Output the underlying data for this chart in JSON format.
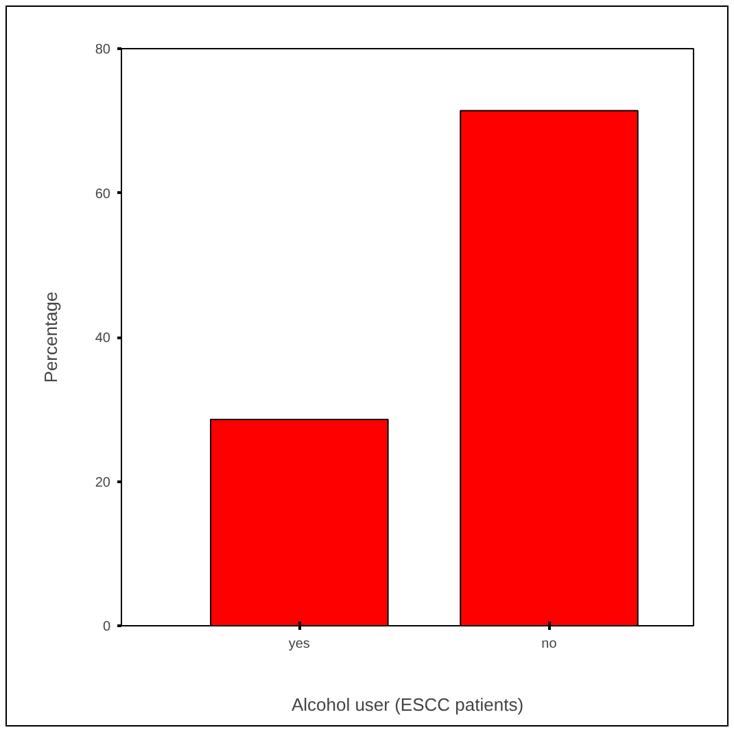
{
  "chart_data": {
    "type": "bar",
    "xlabel": "Alcohol user (ESCC patients)",
    "ylabel": "Percentage",
    "categories": [
      "yes",
      "no"
    ],
    "values": [
      28.6,
      71.4
    ],
    "color": "#ff0000",
    "ylim": [
      0,
      80
    ],
    "yticks": [
      0,
      20,
      40,
      60,
      80
    ],
    "grid": false
  }
}
